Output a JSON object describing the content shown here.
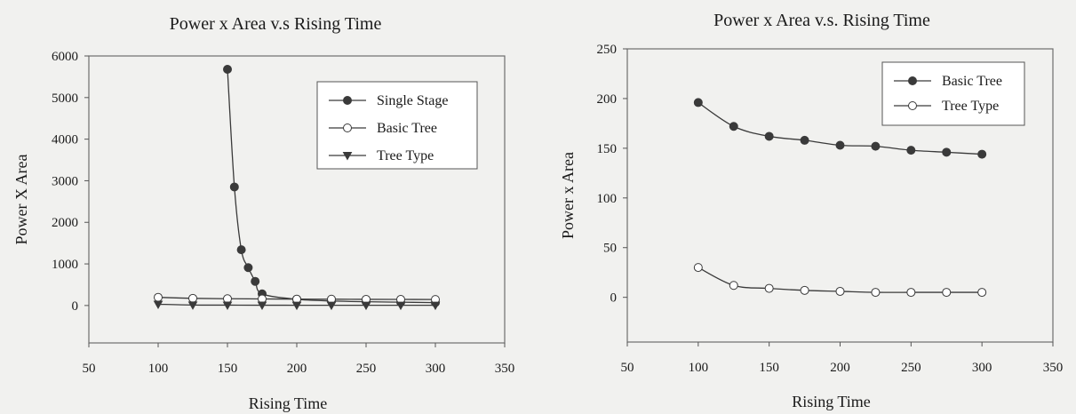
{
  "chart_data": [
    {
      "type": "line",
      "title": "Power x Area  v.s  Rising Time",
      "xlabel": "Rising Time",
      "ylabel": "Power X Area",
      "xlim": [
        50,
        350
      ],
      "ylim": [
        -900,
        6000
      ],
      "xticks": [
        50,
        100,
        150,
        200,
        250,
        300,
        350
      ],
      "yticks": [
        0,
        1000,
        2000,
        3000,
        4000,
        5000,
        6000
      ],
      "grid": false,
      "legend_position": "top-right",
      "series": [
        {
          "name": "Single Stage",
          "marker": "filled-circle",
          "color": "#3a3a3a",
          "x": [
            150,
            155,
            160,
            165,
            170,
            175,
            200,
            225,
            250,
            275,
            300
          ],
          "y": [
            5680,
            2850,
            1340,
            910,
            580,
            280,
            150,
            110,
            90,
            80,
            70
          ]
        },
        {
          "name": "Basic Tree",
          "marker": "open-circle",
          "color": "#3a3a3a",
          "x": [
            100,
            125,
            150,
            175,
            200,
            225,
            250,
            275,
            300
          ],
          "y": [
            196,
            172,
            162,
            158,
            153,
            152,
            148,
            146,
            144
          ]
        },
        {
          "name": "Tree Type",
          "marker": "triangle-down",
          "color": "#3a3a3a",
          "x": [
            100,
            125,
            150,
            175,
            200,
            225,
            250,
            275,
            300
          ],
          "y": [
            30,
            11,
            9,
            7,
            6,
            5,
            5,
            5,
            5
          ]
        }
      ]
    },
    {
      "type": "line",
      "title": "Power x Area  v.s. Rising Time",
      "xlabel": "Rising Time",
      "ylabel": "Power x Area",
      "xlim": [
        50,
        350
      ],
      "ylim": [
        -45,
        250
      ],
      "xticks": [
        50,
        100,
        150,
        200,
        250,
        300,
        350
      ],
      "yticks": [
        0,
        50,
        100,
        150,
        200,
        250
      ],
      "grid": false,
      "legend_position": "top-right",
      "series": [
        {
          "name": "Basic Tree",
          "marker": "filled-circle",
          "color": "#3a3a3a",
          "x": [
            100,
            125,
            150,
            175,
            200,
            225,
            250,
            275,
            300
          ],
          "y": [
            196,
            172,
            162,
            158,
            153,
            152,
            148,
            146,
            144
          ]
        },
        {
          "name": "Tree Type",
          "marker": "open-circle",
          "color": "#3a3a3a",
          "x": [
            100,
            125,
            150,
            175,
            200,
            225,
            250,
            275,
            300
          ],
          "y": [
            30,
            12,
            9,
            7,
            6,
            5,
            5,
            5,
            5
          ]
        }
      ]
    }
  ]
}
